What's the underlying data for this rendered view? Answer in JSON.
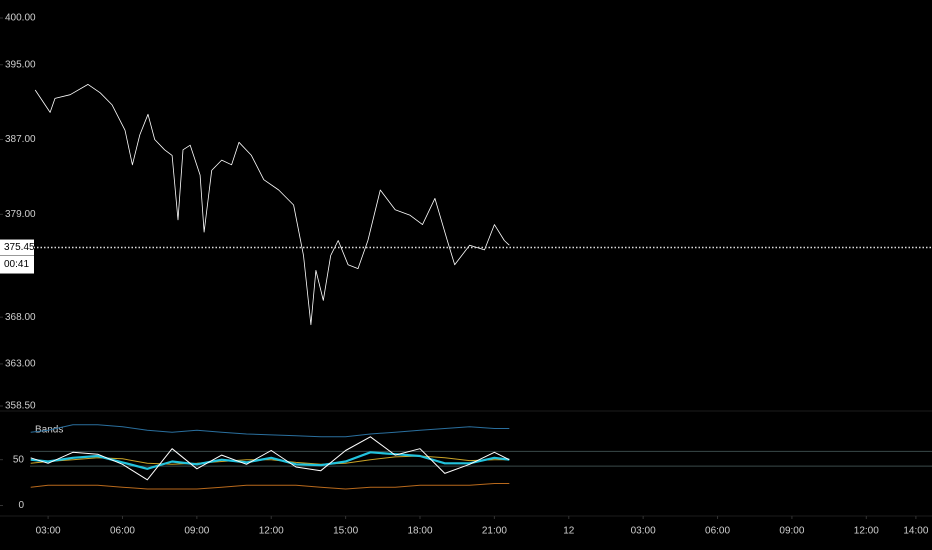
{
  "chart_data": [
    {
      "type": "line",
      "x": [
        2.48,
        3.08,
        3.28,
        3.89,
        4.61,
        5.1,
        5.58,
        6.1,
        6.4,
        6.7,
        7.03,
        7.3,
        7.7,
        8.0,
        8.24,
        8.44,
        8.73,
        9.13,
        9.29,
        9.6,
        10.0,
        10.4,
        10.7,
        11.2,
        11.7,
        12.3,
        12.9,
        13.3,
        13.6,
        13.8,
        14.1,
        14.4,
        14.7,
        15.1,
        15.5,
        15.9,
        16.4,
        17.0,
        17.6,
        18.1,
        18.6,
        19.1,
        19.4,
        20.0,
        20.6,
        21.0,
        21.4,
        21.6
      ],
      "values": [
        392.3,
        389.9,
        391.4,
        391.8,
        392.9,
        392.0,
        390.7,
        388.0,
        384.3,
        387.5,
        389.7,
        387.0,
        385.9,
        385.3,
        378.4,
        385.9,
        386.4,
        383.2,
        377.1,
        383.7,
        384.8,
        384.3,
        386.7,
        385.3,
        382.7,
        381.6,
        380.0,
        374.6,
        367.2,
        373.0,
        369.8,
        374.6,
        376.2,
        373.6,
        373.2,
        376.2,
        381.6,
        379.5,
        378.9,
        377.9,
        380.7,
        376.2,
        373.6,
        375.7,
        375.2,
        377.9,
        376.2,
        375.7
      ],
      "color": "#ffffff",
      "xlim": [
        2.27,
        38.65
      ],
      "ylim": [
        358.5,
        400
      ],
      "yticks": [
        {
          "value": 400,
          "label": "400.00"
        },
        {
          "value": 395,
          "label": "395.00"
        },
        {
          "value": 387,
          "label": "387.00"
        },
        {
          "value": 379,
          "label": "379.00"
        },
        {
          "value": 368,
          "label": "368.00"
        },
        {
          "value": 363,
          "label": "363.00"
        },
        {
          "value": 358.5,
          "label": "358.50"
        }
      ],
      "last_price": {
        "value": 375.45,
        "label": "375.45"
      },
      "countdown": "00:41"
    },
    {
      "type": "line",
      "title": "Bands",
      "x": [
        2.3,
        3,
        4,
        5,
        6,
        7,
        8,
        9,
        10,
        11,
        12,
        13,
        14,
        15,
        16,
        17,
        18,
        19,
        20,
        21,
        21.6
      ],
      "series": [
        {
          "color": "#2a6f9e",
          "values": [
            80,
            82,
            88,
            88,
            86,
            82,
            80,
            82,
            80,
            78,
            77,
            76,
            75,
            75,
            78,
            80,
            82,
            84,
            86,
            84,
            84
          ]
        },
        {
          "color": "#b8691c",
          "values": [
            20,
            22,
            22,
            22,
            20,
            18,
            18,
            18,
            20,
            22,
            22,
            22,
            20,
            18,
            20,
            20,
            22,
            22,
            22,
            24,
            24
          ]
        },
        {
          "color": "#c9a227",
          "values": [
            46,
            48,
            50,
            52,
            51,
            46,
            45,
            46,
            48,
            50,
            50,
            47,
            45,
            46,
            50,
            53,
            54,
            52,
            49,
            50,
            50
          ]
        },
        {
          "color": "#22c3dd",
          "values": [
            50,
            48,
            52,
            54,
            47,
            40,
            48,
            45,
            50,
            47,
            52,
            45,
            44,
            48,
            58,
            56,
            54,
            46,
            46,
            52,
            50
          ]
        },
        {
          "color": "#ffffff",
          "values": [
            52,
            46,
            58,
            56,
            45,
            28,
            62,
            40,
            55,
            45,
            60,
            42,
            38,
            60,
            75,
            55,
            62,
            35,
            45,
            58,
            50
          ]
        }
      ],
      "levels": [
        59,
        43
      ],
      "xlim": [
        2.27,
        38.65
      ],
      "ylim": [
        -6,
        102
      ],
      "yticks": [
        50,
        0
      ],
      "xticks": [
        {
          "value": 3,
          "label": "03:00"
        },
        {
          "value": 6,
          "label": "06:00"
        },
        {
          "value": 9,
          "label": "09:00"
        },
        {
          "value": 12,
          "label": "12:00"
        },
        {
          "value": 15,
          "label": "15:00"
        },
        {
          "value": 18,
          "label": "18:00"
        },
        {
          "value": 21,
          "label": "21:00"
        },
        {
          "value": 24,
          "label": "12"
        },
        {
          "value": 27,
          "label": "03:00"
        },
        {
          "value": 30,
          "label": "06:00"
        },
        {
          "value": 33,
          "label": "09:00"
        },
        {
          "value": 36,
          "label": "12:00"
        },
        {
          "value": 38,
          "label": "14:00"
        }
      ]
    }
  ]
}
